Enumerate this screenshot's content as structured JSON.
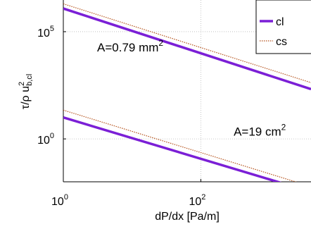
{
  "chart_data": {
    "type": "line",
    "xlabel": "dP/dx [Pa/m]",
    "ylabel": "τ/ρ u",
    "ylabel_sup": "2",
    "ylabel_sub": "b,cl",
    "x_scale": "log",
    "y_scale": "log",
    "xlim": [
      1,
      4000
    ],
    "ylim": [
      0.01,
      3000000
    ],
    "x_ticks": [
      {
        "value": 1,
        "base": "10",
        "exp": "0"
      },
      {
        "value": 100,
        "base": "10",
        "exp": "2"
      }
    ],
    "y_ticks": [
      {
        "value": 1,
        "base": "10",
        "exp": "0"
      },
      {
        "value": 100000,
        "base": "10",
        "exp": "5"
      }
    ],
    "grid": true,
    "legend": {
      "position": "top-right",
      "items": [
        {
          "label": "cl",
          "color": "#7b1fd6",
          "style": "solid"
        },
        {
          "label": "cs",
          "color": "#b5521b",
          "style": "dotted"
        }
      ]
    },
    "series": [
      {
        "name": "cl",
        "color": "#7b1fd6",
        "x": [
          1,
          4000
        ],
        "y": [
          1200000,
          210
        ]
      },
      {
        "name": "cs",
        "color": "#b5521b",
        "x": [
          1,
          4000
        ],
        "y": [
          2000000,
          420
        ]
      },
      {
        "name": "cl",
        "color": "#7b1fd6",
        "x": [
          1,
          4000
        ],
        "y": [
          10,
          0.0034
        ]
      },
      {
        "name": "cs",
        "color": "#b5521b",
        "x": [
          1,
          4000
        ],
        "y": [
          22,
          0.006
        ]
      }
    ],
    "annotations": [
      {
        "text": "A=0.79 mm",
        "sup": "2",
        "x": 3.1,
        "y": 12000
      },
      {
        "text": "A=19 cm",
        "sup": "2",
        "x": 300,
        "y": 1.4
      }
    ]
  }
}
